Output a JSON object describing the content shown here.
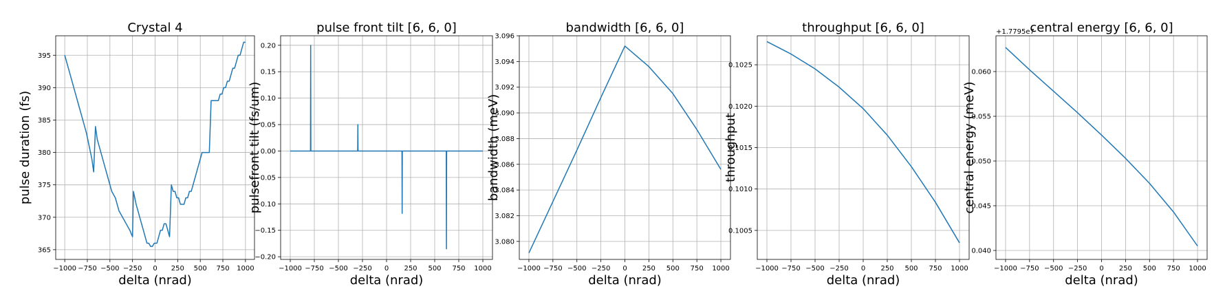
{
  "figure": {
    "line_color": "#1f77b4",
    "grid": true
  },
  "chart_data": [
    {
      "type": "line",
      "title": "Crystal 4",
      "xlabel": "delta (nrad)",
      "ylabel": "pulse duration (fs)",
      "xlim": [
        -1100,
        1100
      ],
      "ylim": [
        363.5,
        398
      ],
      "xticks": [
        -1000,
        -750,
        -500,
        -250,
        0,
        250,
        500,
        750,
        1000
      ],
      "yticks": [
        365,
        370,
        375,
        380,
        385,
        390,
        395
      ],
      "ytick_labels": [
        "365",
        "370",
        "375",
        "380",
        "385",
        "390",
        "395"
      ],
      "offset_label": "",
      "series": [
        {
          "x": [
            -1000,
            -960,
            -920,
            -880,
            -840,
            -800,
            -760,
            -730,
            -700,
            -680,
            -660,
            -640,
            -600,
            -560,
            -520,
            -480,
            -440,
            -400,
            -360,
            -320,
            -280,
            -250,
            -240,
            -225,
            -210,
            -190,
            -170,
            -150,
            -130,
            -110,
            -90,
            -70,
            -50,
            -30,
            -10,
            0,
            20,
            40,
            60,
            80,
            100,
            120,
            140,
            160,
            180,
            200,
            220,
            240,
            250,
            260,
            280,
            300,
            320,
            340,
            360,
            380,
            400,
            420,
            440,
            460,
            480,
            500,
            520,
            540,
            560,
            580,
            600,
            620,
            640,
            660,
            680,
            700,
            720,
            740,
            760,
            780,
            800,
            820,
            840,
            860,
            880,
            900,
            920,
            940,
            960,
            980,
            1000
          ],
          "y": [
            395,
            393,
            391,
            389,
            387,
            385,
            383,
            381,
            379,
            377,
            384,
            382,
            380,
            378,
            376,
            374,
            373,
            371,
            370,
            369,
            368,
            367,
            374,
            373,
            372,
            371,
            370,
            369,
            368,
            367,
            366,
            366,
            365.5,
            365.5,
            366,
            366,
            366,
            367,
            368,
            368,
            369,
            369,
            368,
            367,
            375,
            374,
            374,
            373,
            373,
            373,
            372,
            372,
            372,
            373,
            373,
            374,
            374,
            375,
            376,
            377,
            378,
            379,
            380,
            380,
            380,
            380,
            380,
            388,
            388,
            388,
            388,
            388,
            389,
            389,
            390,
            390,
            391,
            391,
            392,
            393,
            393,
            394,
            395,
            395,
            396,
            397,
            397
          ]
        }
      ]
    },
    {
      "type": "line",
      "title": "pulse front tilt [6, 6, 0]",
      "xlabel": "delta (nrad)",
      "ylabel": "pulsefront tilt (fs/um)",
      "xlim": [
        -1100,
        1100
      ],
      "ylim": [
        -0.205,
        0.218
      ],
      "xticks": [
        -1000,
        -750,
        -500,
        -250,
        0,
        250,
        500,
        750,
        1000
      ],
      "yticks": [
        -0.2,
        -0.15,
        -0.1,
        -0.05,
        0.0,
        0.05,
        0.1,
        0.15,
        0.2
      ],
      "ytick_labels": [
        "−0.20",
        "−0.15",
        "−0.10",
        "−0.05",
        "0.00",
        "0.05",
        "0.10",
        "0.15",
        "0.20"
      ],
      "offset_label": "",
      "series": [
        {
          "x": [
            -1000,
            -790,
            -788,
            -786,
            -775,
            -773,
            -300,
            -298,
            -296,
            -290,
            -288,
            160,
            162,
            164,
            175,
            177,
            620,
            622,
            624,
            640,
            642,
            1000
          ],
          "y": [
            0,
            0,
            0.2,
            0,
            0,
            0,
            0,
            0.05,
            0,
            0,
            0,
            0,
            -0.118,
            0,
            0,
            0,
            0,
            -0.185,
            0,
            0,
            0,
            0
          ]
        }
      ]
    },
    {
      "type": "line",
      "title": "bandwidth [6, 6, 0]",
      "xlabel": "delta (nrad)",
      "ylabel": "bandwidth (meV)",
      "xlim": [
        -1100,
        1100
      ],
      "ylim": [
        3.0786,
        3.096
      ],
      "xticks": [
        -1000,
        -750,
        -500,
        -250,
        0,
        250,
        500,
        750,
        1000
      ],
      "yticks": [
        3.08,
        3.082,
        3.084,
        3.086,
        3.088,
        3.09,
        3.092,
        3.094,
        3.096
      ],
      "ytick_labels": [
        "3.080",
        "3.082",
        "3.084",
        "3.086",
        "3.088",
        "3.090",
        "3.092",
        "3.094",
        "3.096"
      ],
      "offset_label": "",
      "series": [
        {
          "x": [
            -1000,
            -750,
            -500,
            -250,
            0,
            250,
            500,
            750,
            1000
          ],
          "y": [
            3.0791,
            3.0831,
            3.0871,
            3.0912,
            3.0952,
            3.0936,
            3.0915,
            3.0887,
            3.0856
          ]
        }
      ]
    },
    {
      "type": "line",
      "title": "throughput [6, 6, 0]",
      "xlabel": "delta (nrad)",
      "ylabel": "throughput",
      "xlim": [
        -1100,
        1100
      ],
      "ylim": [
        0.10015,
        0.10285
      ],
      "xticks": [
        -1000,
        -750,
        -500,
        -250,
        0,
        250,
        500,
        750,
        1000
      ],
      "yticks": [
        0.1005,
        0.101,
        0.1015,
        0.102,
        0.1025
      ],
      "ytick_labels": [
        "0.1005",
        "0.1010",
        "0.1015",
        "0.1020",
        "0.1025"
      ],
      "offset_label": "",
      "series": [
        {
          "x": [
            -1000,
            -750,
            -500,
            -250,
            0,
            250,
            500,
            750,
            1000
          ],
          "y": [
            0.10278,
            0.10263,
            0.10245,
            0.10223,
            0.10197,
            0.10165,
            0.10127,
            0.10084,
            0.10035
          ]
        }
      ]
    },
    {
      "type": "line",
      "title": "central energy [6, 6, 0]",
      "xlabel": "delta (nrad)",
      "ylabel": "central energy (meV)",
      "xlim": [
        -1100,
        1100
      ],
      "ylim": [
        0.039,
        0.064
      ],
      "xticks": [
        -1000,
        -750,
        -500,
        -250,
        0,
        250,
        500,
        750,
        1000
      ],
      "yticks": [
        0.04,
        0.045,
        0.05,
        0.055,
        0.06
      ],
      "ytick_labels": [
        "0.040",
        "0.045",
        "0.050",
        "0.055",
        "0.060"
      ],
      "offset_label": "+1.7795e7",
      "series": [
        {
          "x": [
            -1000,
            -750,
            -500,
            -250,
            0,
            250,
            500,
            750,
            1000
          ],
          "y": [
            0.0627,
            0.0602,
            0.0578,
            0.0554,
            0.0529,
            0.0503,
            0.0475,
            0.0443,
            0.0405
          ]
        }
      ]
    }
  ]
}
